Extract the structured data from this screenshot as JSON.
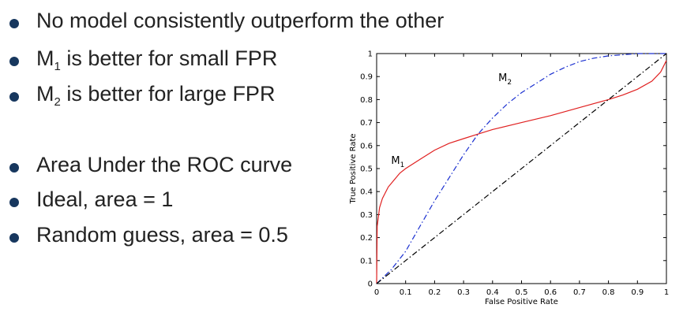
{
  "bullets": [
    {
      "text": "No model consistently outperform the other"
    },
    {
      "pre": "M",
      "sub": "1",
      "post": " is better for small FPR"
    },
    {
      "pre": "M",
      "sub": "2",
      "post": " is better for large FPR"
    },
    {
      "text": "Area Under the ROC curve"
    },
    {
      "text": "Ideal, area = 1"
    },
    {
      "text": "Random guess, area = 0.5"
    }
  ],
  "chart_data": {
    "type": "line",
    "title": "",
    "xlabel": "False Positive Rate",
    "ylabel": "True Positive Rate",
    "xlim": [
      0,
      1
    ],
    "ylim": [
      0,
      1
    ],
    "xticks": [
      "0",
      "0.1",
      "0.2",
      "0.3",
      "0.4",
      "0.5",
      "0.6",
      "0.7",
      "0.8",
      "0.9",
      "1"
    ],
    "yticks": [
      "0",
      "0.1",
      "0.2",
      "0.3",
      "0.4",
      "0.5",
      "0.6",
      "0.7",
      "0.8",
      "0.9",
      "1"
    ],
    "grid": false,
    "legend": "none",
    "series": [
      {
        "name": "M1",
        "label_pre": "M",
        "label_sub": "1",
        "label_at": [
          0.05,
          0.52
        ],
        "color": "#e02020",
        "style": "solid",
        "x": [
          0,
          0.002,
          0.01,
          0.02,
          0.04,
          0.06,
          0.08,
          0.1,
          0.15,
          0.2,
          0.25,
          0.3,
          0.35,
          0.4,
          0.5,
          0.6,
          0.7,
          0.8,
          0.85,
          0.9,
          0.95,
          0.98,
          1.0
        ],
        "y": [
          0,
          0.25,
          0.33,
          0.37,
          0.42,
          0.45,
          0.48,
          0.5,
          0.54,
          0.58,
          0.61,
          0.63,
          0.65,
          0.67,
          0.7,
          0.73,
          0.765,
          0.8,
          0.82,
          0.845,
          0.88,
          0.92,
          0.97
        ]
      },
      {
        "name": "M2",
        "label_pre": "M",
        "label_sub": "2",
        "label_at": [
          0.42,
          0.88
        ],
        "color": "#1a2fd0",
        "style": "dashdot",
        "x": [
          0,
          0.05,
          0.1,
          0.15,
          0.2,
          0.25,
          0.3,
          0.35,
          0.4,
          0.45,
          0.5,
          0.55,
          0.6,
          0.65,
          0.7,
          0.75,
          0.8,
          0.85,
          0.9,
          0.95,
          1.0
        ],
        "y": [
          0,
          0.06,
          0.14,
          0.25,
          0.36,
          0.46,
          0.56,
          0.65,
          0.72,
          0.78,
          0.83,
          0.87,
          0.91,
          0.94,
          0.965,
          0.98,
          0.99,
          0.995,
          1.0,
          1.0,
          1.0
        ]
      },
      {
        "name": "",
        "color": "#000000",
        "style": "dashdot",
        "x": [
          0,
          1
        ],
        "y": [
          0,
          1
        ]
      }
    ]
  }
}
